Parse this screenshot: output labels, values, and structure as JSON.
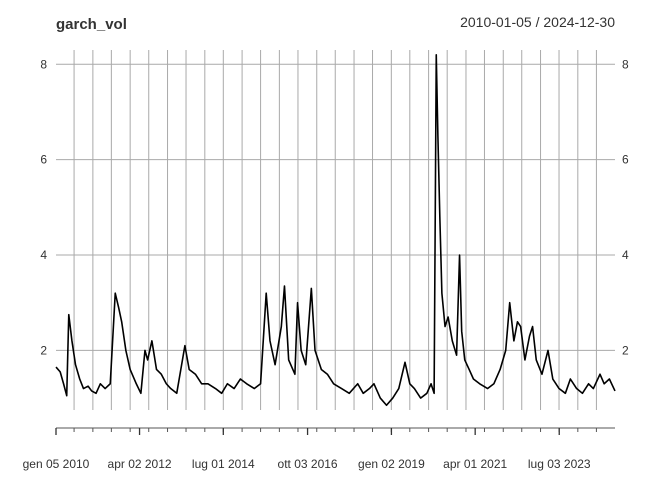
{
  "chart_data": {
    "type": "line",
    "title": "garch_vol",
    "date_range": "2010-01-05 / 2024-12-30",
    "xlabel": "",
    "ylabel": "",
    "x_range": [
      "2010-01-05",
      "2024-12-30"
    ],
    "ylim": [
      0.75,
      8.3
    ],
    "y_ticks": [
      2,
      4,
      6,
      8
    ],
    "grid": true,
    "x_tick_labels": [
      {
        "date": "2010-01-05",
        "label": "gen 05 2010"
      },
      {
        "date": "2012-04-02",
        "label": "apr 02 2012"
      },
      {
        "date": "2014-07-01",
        "label": "lug 01 2014"
      },
      {
        "date": "2016-10-03",
        "label": "ott 03 2016"
      },
      {
        "date": "2019-01-02",
        "label": "gen 02 2019"
      },
      {
        "date": "2021-04-01",
        "label": "apr 01 2021"
      },
      {
        "date": "2023-07-03",
        "label": "lug 03 2023"
      }
    ],
    "series": [
      {
        "color": "#000000",
        "points": [
          [
            "2010-01-05",
            1.65
          ],
          [
            "2010-02-15",
            1.55
          ],
          [
            "2010-03-20",
            1.3
          ],
          [
            "2010-04-20",
            1.05
          ],
          [
            "2010-05-10",
            2.75
          ],
          [
            "2010-06-10",
            2.2
          ],
          [
            "2010-07-15",
            1.7
          ],
          [
            "2010-08-25",
            1.4
          ],
          [
            "2010-10-01",
            1.2
          ],
          [
            "2010-11-15",
            1.25
          ],
          [
            "2010-12-20",
            1.15
          ],
          [
            "2011-02-01",
            1.1
          ],
          [
            "2011-03-15",
            1.3
          ],
          [
            "2011-05-01",
            1.2
          ],
          [
            "2011-06-20",
            1.3
          ],
          [
            "2011-08-08",
            3.2
          ],
          [
            "2011-09-10",
            2.9
          ],
          [
            "2011-10-10",
            2.6
          ],
          [
            "2011-11-20",
            2.0
          ],
          [
            "2012-01-01",
            1.6
          ],
          [
            "2012-03-01",
            1.3
          ],
          [
            "2012-04-15",
            1.1
          ],
          [
            "2012-05-25",
            2.0
          ],
          [
            "2012-06-20",
            1.8
          ],
          [
            "2012-08-01",
            2.2
          ],
          [
            "2012-09-15",
            1.6
          ],
          [
            "2012-11-01",
            1.5
          ],
          [
            "2012-12-20",
            1.3
          ],
          [
            "2013-02-01",
            1.2
          ],
          [
            "2013-04-01",
            1.1
          ],
          [
            "2013-06-20",
            2.1
          ],
          [
            "2013-08-01",
            1.6
          ],
          [
            "2013-10-01",
            1.5
          ],
          [
            "2013-12-01",
            1.3
          ],
          [
            "2014-02-01",
            1.3
          ],
          [
            "2014-04-15",
            1.2
          ],
          [
            "2014-06-15",
            1.1
          ],
          [
            "2014-08-10",
            1.3
          ],
          [
            "2014-10-15",
            1.2
          ],
          [
            "2014-12-15",
            1.4
          ],
          [
            "2015-02-15",
            1.3
          ],
          [
            "2015-05-01",
            1.2
          ],
          [
            "2015-07-01",
            1.3
          ],
          [
            "2015-08-25",
            3.2
          ],
          [
            "2015-10-01",
            2.2
          ],
          [
            "2015-11-20",
            1.7
          ],
          [
            "2016-01-20",
            2.5
          ],
          [
            "2016-02-20",
            3.35
          ],
          [
            "2016-04-01",
            1.8
          ],
          [
            "2016-06-01",
            1.5
          ],
          [
            "2016-06-27",
            3.0
          ],
          [
            "2016-08-01",
            2.0
          ],
          [
            "2016-09-15",
            1.7
          ],
          [
            "2016-11-09",
            3.3
          ],
          [
            "2016-12-15",
            2.0
          ],
          [
            "2017-02-15",
            1.6
          ],
          [
            "2017-04-15",
            1.5
          ],
          [
            "2017-06-15",
            1.3
          ],
          [
            "2017-09-01",
            1.2
          ],
          [
            "2017-11-15",
            1.1
          ],
          [
            "2018-02-06",
            1.3
          ],
          [
            "2018-04-01",
            1.1
          ],
          [
            "2018-06-01",
            1.2
          ],
          [
            "2018-07-15",
            1.3
          ],
          [
            "2018-09-15",
            1.0
          ],
          [
            "2018-11-15",
            0.85
          ],
          [
            "2019-01-15",
            1.0
          ],
          [
            "2019-03-15",
            1.2
          ],
          [
            "2019-05-15",
            1.75
          ],
          [
            "2019-07-01",
            1.3
          ],
          [
            "2019-08-15",
            1.2
          ],
          [
            "2019-10-15",
            1.0
          ],
          [
            "2019-12-15",
            1.1
          ],
          [
            "2020-01-25",
            1.3
          ],
          [
            "2020-02-24",
            1.1
          ],
          [
            "2020-03-16",
            8.2
          ],
          [
            "2020-04-01",
            6.5
          ],
          [
            "2020-04-20",
            4.8
          ],
          [
            "2020-05-10",
            3.2
          ],
          [
            "2020-06-10",
            2.5
          ],
          [
            "2020-07-10",
            2.7
          ],
          [
            "2020-08-20",
            2.2
          ],
          [
            "2020-10-01",
            1.9
          ],
          [
            "2020-10-30",
            4.0
          ],
          [
            "2020-11-20",
            2.4
          ],
          [
            "2020-12-20",
            1.8
          ],
          [
            "2021-02-01",
            1.6
          ],
          [
            "2021-03-15",
            1.4
          ],
          [
            "2021-05-15",
            1.3
          ],
          [
            "2021-08-01",
            1.2
          ],
          [
            "2021-10-01",
            1.3
          ],
          [
            "2021-12-01",
            1.6
          ],
          [
            "2022-01-25",
            2.0
          ],
          [
            "2022-03-05",
            3.0
          ],
          [
            "2022-04-15",
            2.2
          ],
          [
            "2022-05-20",
            2.6
          ],
          [
            "2022-06-20",
            2.5
          ],
          [
            "2022-08-01",
            1.8
          ],
          [
            "2022-09-15",
            2.3
          ],
          [
            "2022-10-15",
            2.5
          ],
          [
            "2022-11-20",
            1.8
          ],
          [
            "2023-01-15",
            1.5
          ],
          [
            "2023-03-15",
            2.0
          ],
          [
            "2023-05-01",
            1.4
          ],
          [
            "2023-07-01",
            1.2
          ],
          [
            "2023-09-01",
            1.1
          ],
          [
            "2023-10-20",
            1.4
          ],
          [
            "2023-12-20",
            1.2
          ],
          [
            "2024-02-15",
            1.1
          ],
          [
            "2024-04-15",
            1.3
          ],
          [
            "2024-06-01",
            1.2
          ],
          [
            "2024-08-05",
            1.5
          ],
          [
            "2024-09-15",
            1.3
          ],
          [
            "2024-11-05",
            1.4
          ],
          [
            "2024-12-30",
            1.15
          ]
        ]
      }
    ]
  }
}
